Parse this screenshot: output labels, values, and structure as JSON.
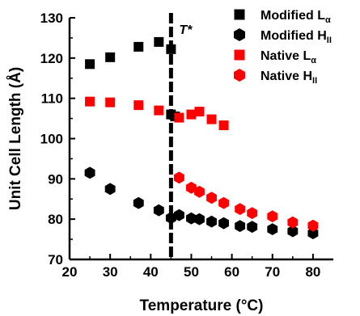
{
  "chart_data": {
    "type": "scatter",
    "xlabel": "Temperature (°C)",
    "ylabel": "Unit Cell Length (Å)",
    "xlim": [
      20,
      85
    ],
    "ylim": [
      70,
      130
    ],
    "xticks": [
      20,
      30,
      40,
      50,
      60,
      70,
      80
    ],
    "yticks": [
      70,
      80,
      90,
      100,
      110,
      120,
      130
    ],
    "grid": false,
    "legend_position": "top-right",
    "annotation": {
      "label": "T*",
      "x": 45,
      "style": "dashed vertical line"
    },
    "series": [
      {
        "name": "Modified Lα",
        "name_base": "Modified L",
        "name_sub": "α",
        "color": "#000000",
        "marker": "square",
        "points": [
          [
            25,
            118.5
          ],
          [
            30,
            120.2
          ],
          [
            37,
            122.8
          ],
          [
            42,
            124.0
          ],
          [
            45,
            122.2
          ],
          [
            45,
            106.0
          ],
          [
            46,
            105.5
          ]
        ]
      },
      {
        "name": "Modified HII",
        "name_base": "Modified H",
        "name_sub": "II",
        "color": "#000000",
        "marker": "hexagon",
        "points": [
          [
            25,
            91.5
          ],
          [
            30,
            87.5
          ],
          [
            37,
            84.0
          ],
          [
            42,
            82.2
          ],
          [
            45,
            80.3
          ],
          [
            47,
            81.0
          ],
          [
            50,
            80.2
          ],
          [
            52,
            80.0
          ],
          [
            55,
            79.4
          ],
          [
            58,
            79.0
          ],
          [
            62,
            78.3
          ],
          [
            65,
            78.1
          ],
          [
            70,
            77.5
          ],
          [
            75,
            77.0
          ],
          [
            80,
            76.5
          ]
        ]
      },
      {
        "name": "Native Lα",
        "name_base": "Native L",
        "name_sub": "α",
        "color": "#ff0000",
        "marker": "square",
        "points": [
          [
            25,
            109.2
          ],
          [
            30,
            109.0
          ],
          [
            37,
            108.3
          ],
          [
            42,
            107.0
          ],
          [
            47,
            105.2
          ],
          [
            50,
            106.0
          ],
          [
            52,
            106.7
          ],
          [
            55,
            104.8
          ],
          [
            58,
            103.3
          ]
        ]
      },
      {
        "name": "Native HII",
        "name_base": "Native H",
        "name_sub": "II",
        "color": "#ff0000",
        "marker": "hexagon",
        "points": [
          [
            47,
            90.3
          ],
          [
            50,
            87.8
          ],
          [
            52,
            86.8
          ],
          [
            55,
            85.3
          ],
          [
            58,
            84.0
          ],
          [
            62,
            82.5
          ],
          [
            65,
            81.5
          ],
          [
            70,
            80.7
          ],
          [
            75,
            79.2
          ],
          [
            80,
            78.4
          ]
        ]
      }
    ]
  }
}
